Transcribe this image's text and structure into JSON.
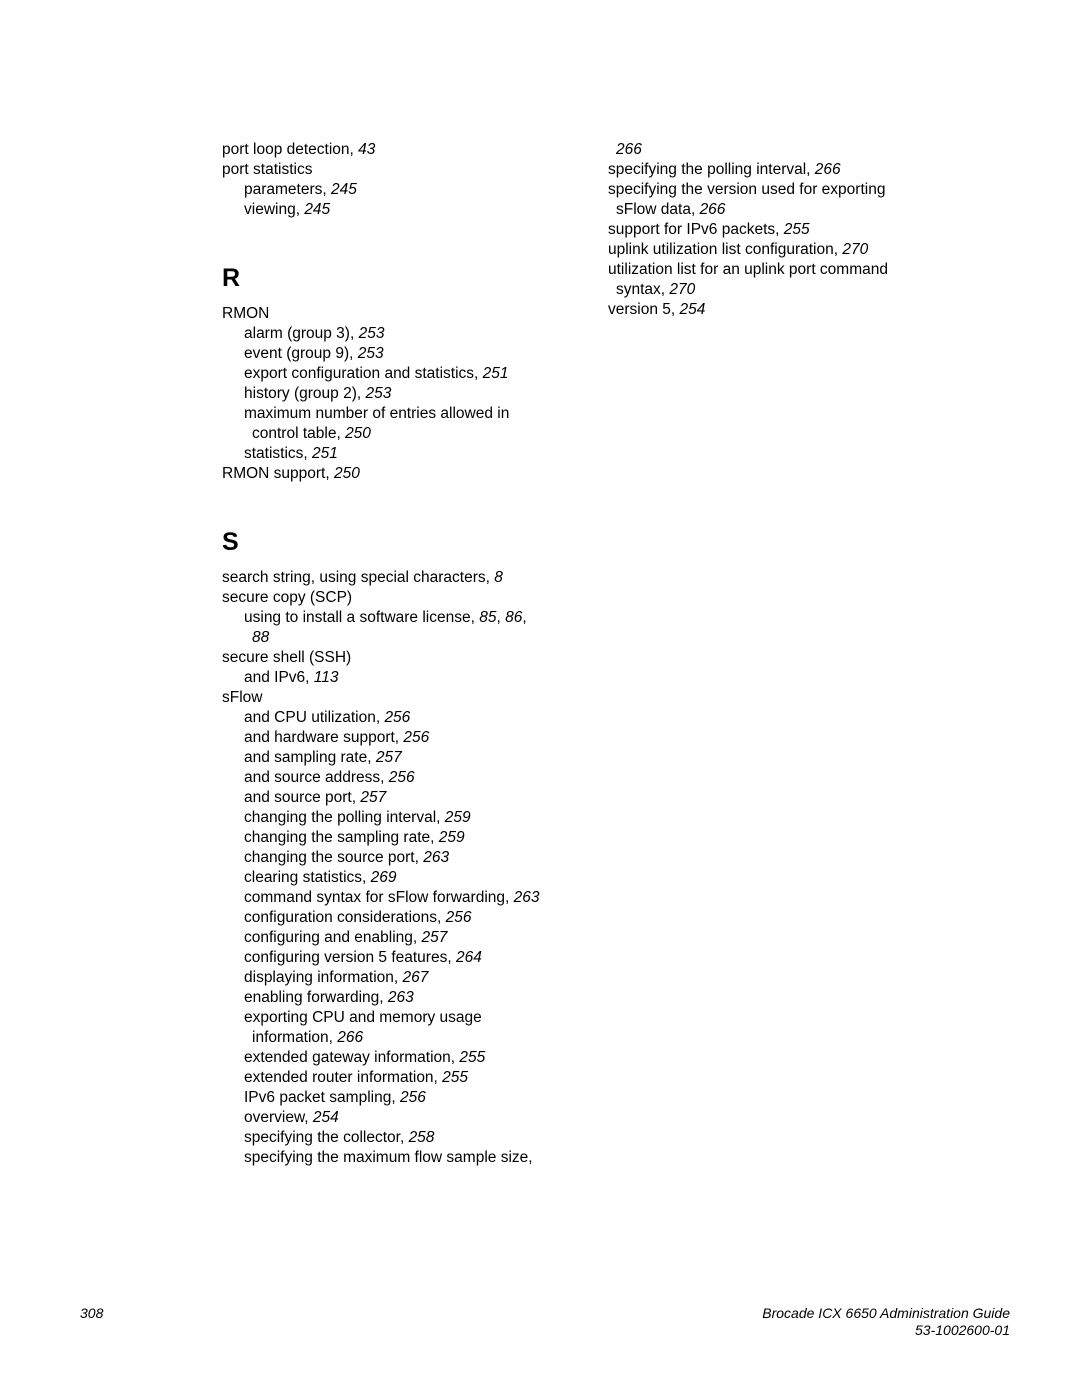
{
  "left_column": [
    {
      "cls": "entry",
      "html": [
        [
          "port loop detection, "
        ],
        [
          "i",
          "43"
        ]
      ]
    },
    {
      "cls": "entry",
      "html": [
        [
          "port statistics"
        ]
      ]
    },
    {
      "cls": "sub",
      "html": [
        [
          "parameters, "
        ],
        [
          "i",
          "245"
        ]
      ]
    },
    {
      "cls": "sub",
      "html": [
        [
          "viewing, "
        ],
        [
          "i",
          "245"
        ]
      ]
    },
    {
      "cls": "section-head",
      "html": [
        [
          "R"
        ]
      ]
    },
    {
      "cls": "entry",
      "html": [
        [
          "RMON"
        ]
      ]
    },
    {
      "cls": "sub",
      "html": [
        [
          "alarm (group 3), "
        ],
        [
          "i",
          "253"
        ]
      ]
    },
    {
      "cls": "sub",
      "html": [
        [
          "event (group 9), "
        ],
        [
          "i",
          "253"
        ]
      ]
    },
    {
      "cls": "sub",
      "html": [
        [
          "export configuration and statistics, "
        ],
        [
          "i",
          "251"
        ]
      ]
    },
    {
      "cls": "sub",
      "html": [
        [
          "history (group 2), "
        ],
        [
          "i",
          "253"
        ]
      ]
    },
    {
      "cls": "sub",
      "html": [
        [
          "maximum number of entries allowed in"
        ]
      ]
    },
    {
      "cls": "subsub",
      "html": [
        [
          "control table, "
        ],
        [
          "i",
          "250"
        ]
      ]
    },
    {
      "cls": "sub",
      "html": [
        [
          "statistics, "
        ],
        [
          "i",
          "251"
        ]
      ]
    },
    {
      "cls": "entry",
      "html": [
        [
          "RMON support, "
        ],
        [
          "i",
          "250"
        ]
      ]
    },
    {
      "cls": "section-head",
      "html": [
        [
          "S"
        ]
      ]
    },
    {
      "cls": "entry",
      "html": [
        [
          "search string, using special characters, "
        ],
        [
          "i",
          "8"
        ]
      ]
    },
    {
      "cls": "entry",
      "html": [
        [
          "secure copy (SCP)"
        ]
      ]
    },
    {
      "cls": "sub",
      "html": [
        [
          "using to install a software license, "
        ],
        [
          "i",
          "85"
        ],
        [
          ", "
        ],
        [
          "i",
          "86"
        ],
        [
          ", "
        ]
      ]
    },
    {
      "cls": "subsub",
      "html": [
        [
          "i",
          "88"
        ]
      ]
    },
    {
      "cls": "entry",
      "html": [
        [
          "secure shell (SSH)"
        ]
      ]
    },
    {
      "cls": "sub",
      "html": [
        [
          "and IPv6, "
        ],
        [
          "i",
          "113"
        ]
      ]
    },
    {
      "cls": "entry",
      "html": [
        [
          "sFlow"
        ]
      ]
    },
    {
      "cls": "sub",
      "html": [
        [
          "and CPU utilization, "
        ],
        [
          "i",
          "256"
        ]
      ]
    },
    {
      "cls": "sub",
      "html": [
        [
          "and hardware support, "
        ],
        [
          "i",
          "256"
        ]
      ]
    },
    {
      "cls": "sub",
      "html": [
        [
          "and sampling rate, "
        ],
        [
          "i",
          "257"
        ]
      ]
    },
    {
      "cls": "sub",
      "html": [
        [
          "and source address, "
        ],
        [
          "i",
          "256"
        ]
      ]
    },
    {
      "cls": "sub",
      "html": [
        [
          "and source port, "
        ],
        [
          "i",
          "257"
        ]
      ]
    },
    {
      "cls": "sub",
      "html": [
        [
          "changing the polling interval, "
        ],
        [
          "i",
          "259"
        ]
      ]
    },
    {
      "cls": "sub",
      "html": [
        [
          "changing the sampling rate, "
        ],
        [
          "i",
          "259"
        ]
      ]
    },
    {
      "cls": "sub",
      "html": [
        [
          "changing the source port, "
        ],
        [
          "i",
          "263"
        ]
      ]
    },
    {
      "cls": "sub",
      "html": [
        [
          "clearing statistics, "
        ],
        [
          "i",
          "269"
        ]
      ]
    },
    {
      "cls": "sub",
      "html": [
        [
          "command syntax for sFlow forwarding, "
        ],
        [
          "i",
          "263"
        ]
      ]
    },
    {
      "cls": "sub",
      "html": [
        [
          "configuration considerations, "
        ],
        [
          "i",
          "256"
        ]
      ]
    },
    {
      "cls": "sub",
      "html": [
        [
          "configuring and enabling, "
        ],
        [
          "i",
          "257"
        ]
      ]
    },
    {
      "cls": "sub",
      "html": [
        [
          "configuring version 5 features, "
        ],
        [
          "i",
          "264"
        ]
      ]
    },
    {
      "cls": "sub",
      "html": [
        [
          "displaying information, "
        ],
        [
          "i",
          "267"
        ]
      ]
    },
    {
      "cls": "sub",
      "html": [
        [
          "enabling forwarding, "
        ],
        [
          "i",
          "263"
        ]
      ]
    },
    {
      "cls": "sub",
      "html": [
        [
          "exporting CPU and memory usage"
        ]
      ]
    },
    {
      "cls": "subsub",
      "html": [
        [
          "information, "
        ],
        [
          "i",
          "266"
        ]
      ]
    },
    {
      "cls": "sub",
      "html": [
        [
          "extended gateway information, "
        ],
        [
          "i",
          "255"
        ]
      ]
    },
    {
      "cls": "sub",
      "html": [
        [
          "extended router information, "
        ],
        [
          "i",
          "255"
        ]
      ]
    },
    {
      "cls": "sub",
      "html": [
        [
          "IPv6 packet sampling, "
        ],
        [
          "i",
          "256"
        ]
      ]
    },
    {
      "cls": "sub",
      "html": [
        [
          "overview, "
        ],
        [
          "i",
          "254"
        ]
      ]
    },
    {
      "cls": "sub",
      "html": [
        [
          "specifying the collector, "
        ],
        [
          "i",
          "258"
        ]
      ]
    },
    {
      "cls": "sub",
      "html": [
        [
          "specifying the maximum flow sample size, "
        ]
      ]
    }
  ],
  "right_column": [
    {
      "cls": "subsub",
      "html": [
        [
          "i",
          "266"
        ]
      ]
    },
    {
      "cls": "sub",
      "html": [
        [
          "specifying the polling interval, "
        ],
        [
          "i",
          "266"
        ]
      ]
    },
    {
      "cls": "sub",
      "html": [
        [
          "specifying the version used for exporting"
        ]
      ]
    },
    {
      "cls": "subsub",
      "html": [
        [
          "sFlow data, "
        ],
        [
          "i",
          "266"
        ]
      ]
    },
    {
      "cls": "sub",
      "html": [
        [
          "support for IPv6 packets, "
        ],
        [
          "i",
          "255"
        ]
      ]
    },
    {
      "cls": "sub",
      "html": [
        [
          "uplink utilization list configuration, "
        ],
        [
          "i",
          "270"
        ]
      ]
    },
    {
      "cls": "sub",
      "html": [
        [
          "utilization list for an uplink port command"
        ]
      ]
    },
    {
      "cls": "subsub",
      "html": [
        [
          "syntax, "
        ],
        [
          "i",
          "270"
        ]
      ]
    },
    {
      "cls": "sub",
      "html": [
        [
          "version 5, "
        ],
        [
          "i",
          "254"
        ]
      ]
    }
  ],
  "footer": {
    "page_no": "308",
    "title": "Brocade ICX 6650 Administration Guide",
    "doc_no": "53-1002600-01"
  }
}
